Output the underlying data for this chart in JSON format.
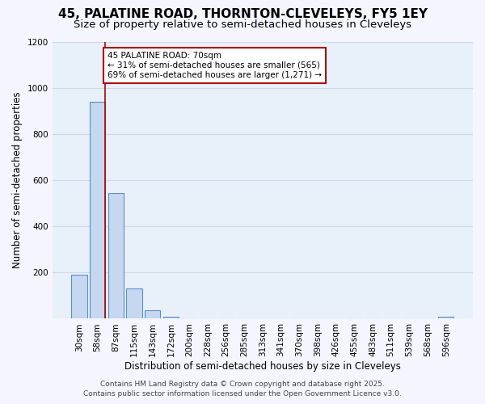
{
  "title_line1": "45, PALATINE ROAD, THORNTON-CLEVELEYS, FY5 1EY",
  "title_line2": "Size of property relative to semi-detached houses in Cleveleys",
  "xlabel": "Distribution of semi-detached houses by size in Cleveleys",
  "ylabel": "Number of semi-detached properties",
  "categories": [
    "30sqm",
    "58sqm",
    "87sqm",
    "115sqm",
    "143sqm",
    "172sqm",
    "200sqm",
    "228sqm",
    "256sqm",
    "285sqm",
    "313sqm",
    "341sqm",
    "370sqm",
    "398sqm",
    "426sqm",
    "455sqm",
    "483sqm",
    "511sqm",
    "539sqm",
    "568sqm",
    "596sqm"
  ],
  "values": [
    190,
    940,
    545,
    130,
    38,
    10,
    0,
    0,
    0,
    0,
    0,
    0,
    0,
    0,
    0,
    0,
    0,
    0,
    0,
    0,
    10
  ],
  "bar_color": "#c5d8f0",
  "bar_edge_color": "#5b8ec4",
  "background_color": "#e8f0fa",
  "grid_color": "#d0d8e8",
  "vline_x_bar_index": 1,
  "vline_color": "#aa0000",
  "annotation_text": "45 PALATINE ROAD: 70sqm\n← 31% of semi-detached houses are smaller (565)\n69% of semi-detached houses are larger (1,271) →",
  "annotation_box_color": "#ffffff",
  "annotation_box_edge": "#aa0000",
  "ylim": [
    0,
    1200
  ],
  "yticks": [
    0,
    200,
    400,
    600,
    800,
    1000,
    1200
  ],
  "footer_line1": "Contains HM Land Registry data © Crown copyright and database right 2025.",
  "footer_line2": "Contains public sector information licensed under the Open Government Licence v3.0.",
  "title_fontsize": 11,
  "subtitle_fontsize": 9.5,
  "axis_label_fontsize": 8.5,
  "tick_fontsize": 7.5,
  "annotation_fontsize": 7.5,
  "footer_fontsize": 6.5,
  "fig_bg": "#f5f5ff"
}
